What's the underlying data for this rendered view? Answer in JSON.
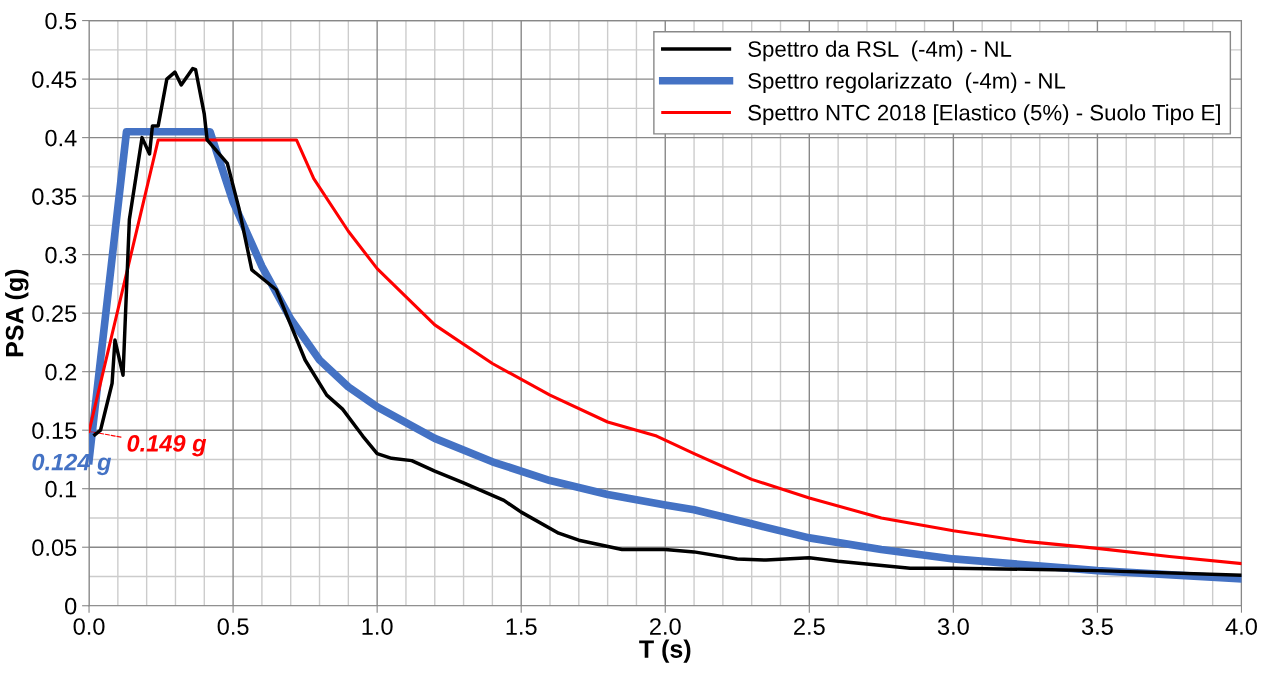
{
  "chart_data": {
    "type": "line",
    "xlabel": "T (s)",
    "ylabel": "PSA (g)",
    "xlim": [
      0,
      4
    ],
    "ylim": [
      0,
      0.5
    ],
    "xticks": [
      {
        "value": 0,
        "label": "0.0"
      },
      {
        "value": 0.5,
        "label": "0.5"
      },
      {
        "value": 1,
        "label": "1.0"
      },
      {
        "value": 1.5,
        "label": "1.5"
      },
      {
        "value": 2,
        "label": "2.0"
      },
      {
        "value": 2.5,
        "label": "2.5"
      },
      {
        "value": 3,
        "label": "3.0"
      },
      {
        "value": 3.5,
        "label": "3.5"
      },
      {
        "value": 4,
        "label": "4.0"
      }
    ],
    "yticks": [
      0,
      0.05,
      0.1,
      0.15,
      0.2,
      0.25,
      0.3,
      0.35,
      0.4,
      0.45,
      0.5
    ],
    "grid": true,
    "legend": "top right",
    "series": [
      {
        "name": "Spettro da RSL  (-4m) - NL",
        "color": "#000000",
        "x": [
          0.02,
          0.04,
          0.06,
          0.08,
          0.09,
          0.118,
          0.13,
          0.14,
          0.184,
          0.21,
          0.22,
          0.24,
          0.27,
          0.298,
          0.32,
          0.36,
          0.37,
          0.4,
          0.41,
          0.48,
          0.52,
          0.565,
          0.65,
          0.7,
          0.75,
          0.825,
          0.88,
          0.95,
          1.0,
          1.05,
          1.12,
          1.2,
          1.3,
          1.44,
          1.5,
          1.63,
          1.7,
          1.85,
          2.0,
          2.1,
          2.25,
          2.35,
          2.5,
          2.6,
          2.85,
          3.0,
          3.3,
          3.5,
          4.0
        ],
        "values": [
          0.146,
          0.15,
          0.17,
          0.19,
          0.227,
          0.197,
          0.27,
          0.33,
          0.4,
          0.386,
          0.41,
          0.41,
          0.45,
          0.456,
          0.445,
          0.459,
          0.458,
          0.42,
          0.398,
          0.378,
          0.34,
          0.287,
          0.27,
          0.24,
          0.21,
          0.18,
          0.168,
          0.145,
          0.13,
          0.126,
          0.124,
          0.115,
          0.105,
          0.09,
          0.08,
          0.062,
          0.056,
          0.048,
          0.048,
          0.046,
          0.04,
          0.039,
          0.041,
          0.038,
          0.032,
          0.032,
          0.031,
          0.03,
          0.026
        ]
      },
      {
        "name": "Spettro regolarizzato  (-4m) - NL",
        "color": "#4472c4",
        "x": [
          0,
          0.13,
          0.42,
          0.5,
          0.6,
          0.7,
          0.8,
          0.9,
          1.0,
          1.2,
          1.4,
          1.6,
          1.8,
          2.0,
          2.1,
          2.3,
          2.5,
          2.75,
          3.0,
          3.5,
          4.0
        ],
        "values": [
          0.124,
          0.405,
          0.405,
          0.345,
          0.29,
          0.245,
          0.21,
          0.187,
          0.17,
          0.143,
          0.123,
          0.107,
          0.095,
          0.086,
          0.082,
          0.07,
          0.058,
          0.048,
          0.04,
          0.03,
          0.023
        ]
      },
      {
        "name": "Spettro NTC 2018 [Elastico (5%) - Suolo Tipo E]",
        "color": "#ff0000",
        "x": [
          0,
          0.24,
          0.72,
          0.78,
          0.9,
          1.0,
          1.2,
          1.4,
          1.6,
          1.8,
          1.97,
          2.1,
          2.3,
          2.5,
          2.75,
          3.0,
          3.25,
          3.5,
          3.75,
          4.0
        ],
        "values": [
          0.149,
          0.398,
          0.398,
          0.365,
          0.32,
          0.288,
          0.24,
          0.207,
          0.18,
          0.157,
          0.145,
          0.13,
          0.108,
          0.092,
          0.075,
          0.064,
          0.055,
          0.049,
          0.042,
          0.036
        ]
      }
    ],
    "annotations": [
      {
        "text": "0.149 g",
        "x": 0,
        "y": 0.149
      },
      {
        "text": "0.124 g",
        "x": 0,
        "y": 0.124
      }
    ]
  }
}
